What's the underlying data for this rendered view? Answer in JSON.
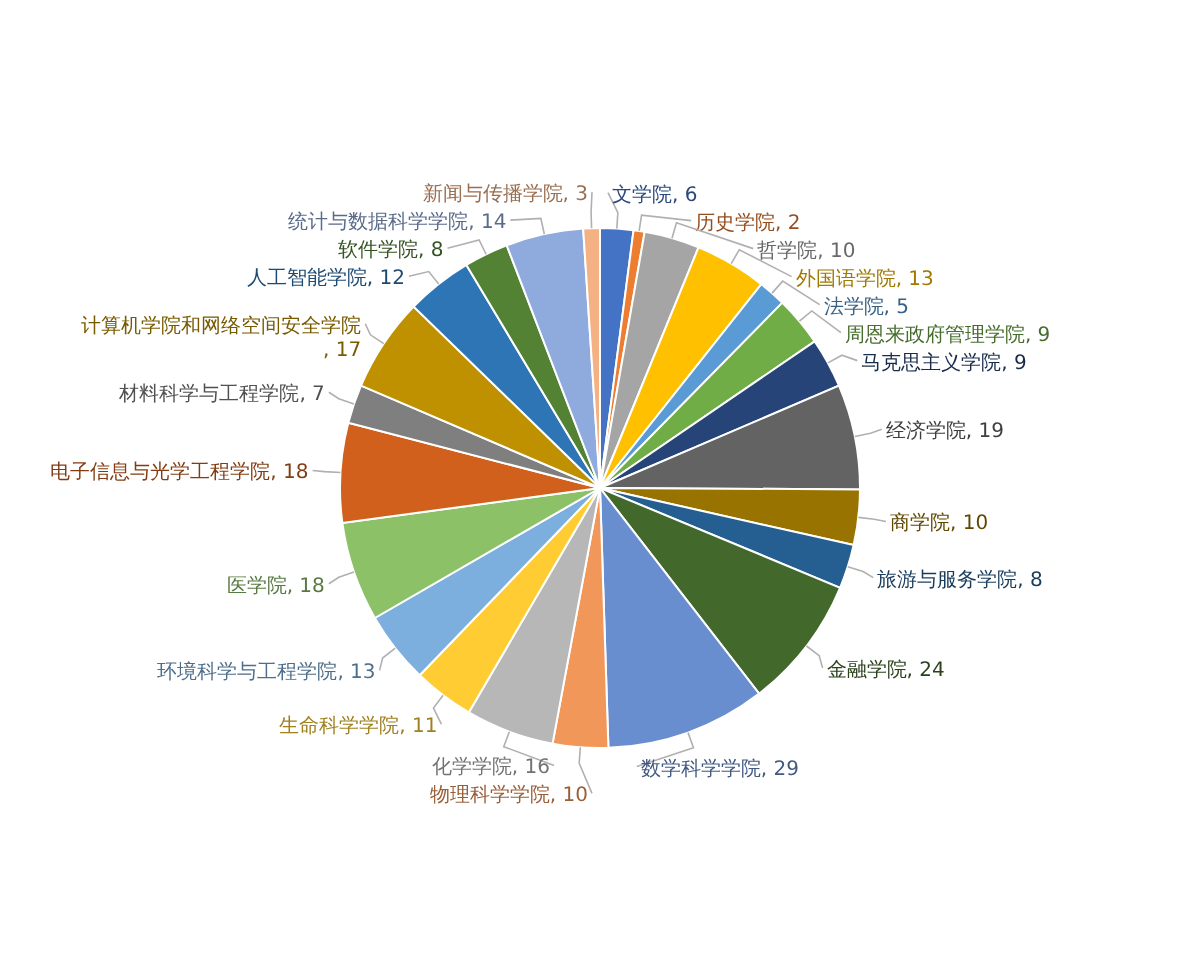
{
  "chart_data": {
    "type": "pie",
    "categories": [
      "文学院",
      "历史学院",
      "哲学院",
      "外国语学院",
      "法学院",
      "周恩来政府管理学院",
      "马克思主义学院",
      "经济学院",
      "商学院",
      "旅游与服务学院",
      "金融学院",
      "数学科学学院",
      "物理科学学院",
      "化学学院",
      "生命科学学院",
      "环境科学与工程学院",
      "医学院",
      "电子信息与光学工程学院",
      "材料科学与工程学院",
      "计算机学院和网络空间安全学院",
      "人工智能学院",
      "软件学院",
      "统计与数据科学学院",
      "新闻与传播学院"
    ],
    "values": [
      6,
      2,
      10,
      13,
      5,
      9,
      9,
      19,
      10,
      8,
      24,
      29,
      10,
      16,
      11,
      13,
      18,
      18,
      7,
      17,
      12,
      8,
      14,
      3
    ],
    "value_labels": [
      ", 6",
      ", 2",
      ", 10",
      ", 13",
      ", 5",
      ", 9",
      ", 9",
      ", 19",
      ", 10",
      ", 8",
      ", 24",
      ", 29",
      ", 10",
      ", 16",
      ", 11",
      ", 13",
      ", 18",
      ", 18",
      ", 7",
      ", 17",
      ", 12",
      ", 8",
      ", 14",
      ", 3"
    ],
    "colors": [
      "#4472c4",
      "#ed7d31",
      "#a5a5a5",
      "#ffc000",
      "#5b9bd5",
      "#70ad47",
      "#264478",
      "#636363",
      "#997300",
      "#255e91",
      "#43682b",
      "#698ed0",
      "#f1975a",
      "#b7b7b7",
      "#ffcd33",
      "#7cafdd",
      "#8cc168",
      "#d0601c",
      "#7f7f7f",
      "#bf9000",
      "#2e75b6",
      "#548235",
      "#8faadc",
      "#f4b183"
    ]
  }
}
